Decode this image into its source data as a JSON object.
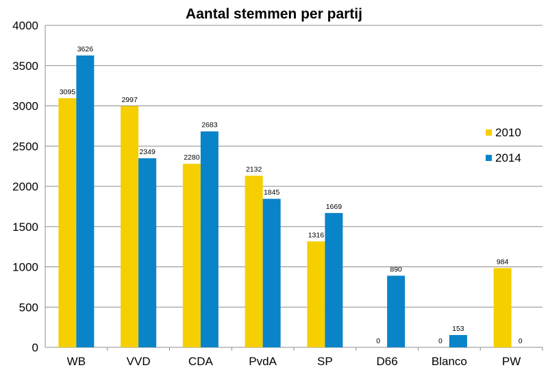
{
  "chart_data": {
    "type": "bar",
    "title": "Aantal stemmen per partij",
    "xlabel": "",
    "ylabel": "",
    "categories": [
      "WB",
      "VVD",
      "CDA",
      "PvdA",
      "SP",
      "D66",
      "Blanco",
      "PW"
    ],
    "series": [
      {
        "name": "2010",
        "color": "#F5CF00",
        "values": [
          3095,
          2997,
          2280,
          2132,
          1316,
          0,
          0,
          984
        ]
      },
      {
        "name": "2014",
        "color": "#0A84C8",
        "values": [
          3626,
          2349,
          2683,
          1845,
          1669,
          890,
          153,
          0
        ]
      }
    ],
    "ylim": [
      0,
      4000
    ],
    "yticks": [
      "0",
      "500",
      "1000",
      "1500",
      "2000",
      "2500",
      "3000",
      "3500",
      "4000"
    ],
    "grid": true,
    "legend_position": "right",
    "data_labels": true
  }
}
